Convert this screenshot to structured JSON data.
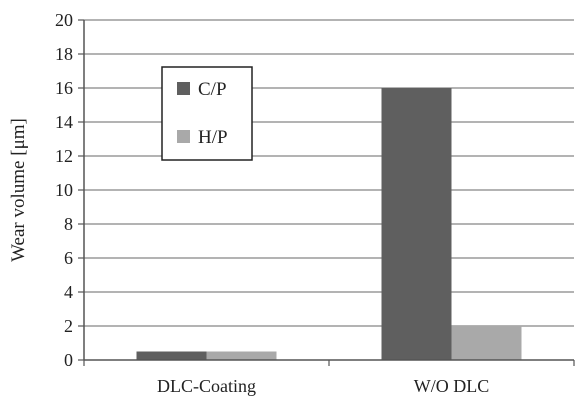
{
  "chart_data": {
    "type": "bar",
    "categories": [
      "DLC-Coating",
      "W/O DLC"
    ],
    "series": [
      {
        "name": "C/P",
        "values": [
          0.5,
          16
        ],
        "color": "#5f5f5f"
      },
      {
        "name": "H/P",
        "values": [
          0.5,
          2
        ],
        "color": "#a9a9a9"
      }
    ],
    "ylabel": "Wear volume [μm]",
    "ylim": [
      0,
      20
    ],
    "yticks": [
      0,
      2,
      4,
      6,
      8,
      10,
      12,
      14,
      16,
      18,
      20
    ],
    "grid": true,
    "legend_position": "top-left"
  }
}
